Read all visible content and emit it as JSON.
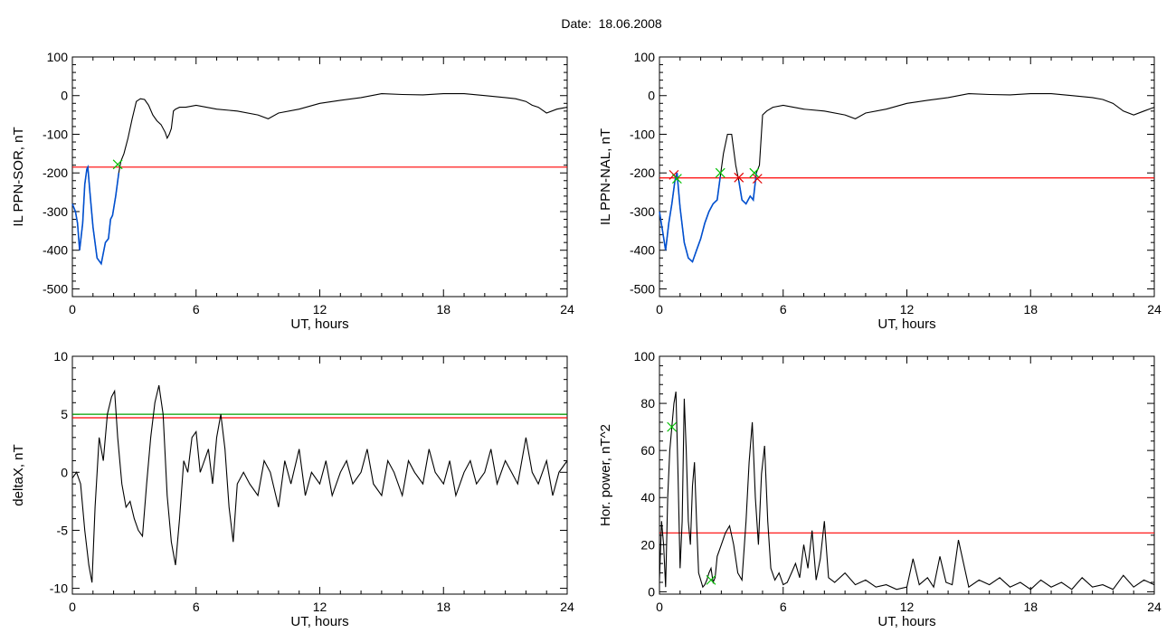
{
  "header": {
    "date_label": "Date:",
    "date_value": "18.06.2008"
  },
  "colors": {
    "data": "#000000",
    "substorm": "#0050d0",
    "threshold": "#ff0000",
    "threshold2": "#00a000",
    "marker_green": "#00c000",
    "marker_red": "#e00000"
  },
  "chart_data": [
    {
      "type": "line",
      "title": "",
      "xlabel": "UT, hours",
      "ylabel": "IL PPN-SOR, nT",
      "xlim": [
        0,
        24
      ],
      "ylim": [
        -520,
        100
      ],
      "xticks": [
        0,
        6,
        12,
        18,
        24
      ],
      "yticks": [
        100,
        0,
        -100,
        -200,
        -300,
        -400,
        -500
      ],
      "grid": false,
      "series": [
        {
          "role": "main",
          "x": [
            0,
            0.15,
            0.25,
            0.35,
            0.5,
            0.6,
            0.7,
            0.75,
            0.85,
            1.0,
            1.2,
            1.4,
            1.6,
            1.75,
            1.85,
            1.95,
            2.1,
            2.25,
            2.35,
            2.5,
            2.7,
            2.9,
            3.1,
            3.3,
            3.5,
            3.7,
            3.9,
            4.1,
            4.3,
            4.5,
            4.6,
            4.7,
            4.8,
            4.9,
            5.0,
            5.2,
            5.5,
            6,
            7,
            8,
            9,
            9.5,
            10,
            11,
            12,
            13,
            14,
            15,
            16,
            17,
            18,
            19,
            20,
            21,
            21.5,
            22,
            22.3,
            22.6,
            23,
            23.5,
            24
          ],
          "y": [
            -280,
            -300,
            -330,
            -400,
            -330,
            -230,
            -190,
            -185,
            -250,
            -340,
            -420,
            -435,
            -380,
            -370,
            -320,
            -310,
            -260,
            -200,
            -170,
            -150,
            -110,
            -60,
            -15,
            -8,
            -10,
            -25,
            -50,
            -65,
            -75,
            -95,
            -110,
            -100,
            -85,
            -40,
            -35,
            -30,
            -30,
            -25,
            -35,
            -40,
            -50,
            -60,
            -45,
            -35,
            -20,
            -12,
            -5,
            5,
            3,
            2,
            5,
            5,
            0,
            -5,
            -8,
            -15,
            -25,
            -30,
            -45,
            -35,
            -30
          ]
        },
        {
          "role": "highlight",
          "x": [
            0,
            0.15,
            0.25,
            0.35,
            0.5,
            0.6,
            0.7,
            0.75,
            0.85,
            1.0,
            1.2,
            1.4,
            1.6,
            1.75,
            1.85,
            1.95,
            2.1,
            2.25
          ],
          "y": [
            -280,
            -300,
            -330,
            -400,
            -330,
            -230,
            -190,
            -185,
            -250,
            -340,
            -420,
            -435,
            -380,
            -370,
            -320,
            -310,
            -260,
            -200
          ]
        }
      ],
      "thresholds": [
        {
          "y": -185,
          "role": "threshold"
        }
      ],
      "markers": [
        {
          "x": 2.2,
          "y": -178,
          "role": "marker_green"
        }
      ]
    },
    {
      "type": "line",
      "title": "",
      "xlabel": "UT, hours",
      "ylabel": "IL PPN-NAL, nT",
      "xlim": [
        0,
        24
      ],
      "ylim": [
        -520,
        100
      ],
      "xticks": [
        0,
        6,
        12,
        18,
        24
      ],
      "yticks": [
        100,
        0,
        -100,
        -200,
        -300,
        -400,
        -500
      ],
      "grid": false,
      "series": [
        {
          "role": "main",
          "x": [
            0,
            0.15,
            0.3,
            0.45,
            0.6,
            0.75,
            0.85,
            1.0,
            1.2,
            1.4,
            1.6,
            1.8,
            2.0,
            2.2,
            2.4,
            2.6,
            2.8,
            2.95,
            3.1,
            3.3,
            3.5,
            3.7,
            3.85,
            4.0,
            4.2,
            4.4,
            4.55,
            4.7,
            4.85,
            5.0,
            5.2,
            5.5,
            6,
            7,
            8,
            9,
            9.5,
            10,
            11,
            12,
            13,
            14,
            15,
            16,
            17,
            18,
            19,
            20,
            21,
            21.5,
            22,
            22.5,
            23,
            23.5,
            24
          ],
          "y": [
            -300,
            -350,
            -400,
            -330,
            -280,
            -220,
            -200,
            -290,
            -380,
            -420,
            -430,
            -400,
            -370,
            -330,
            -300,
            -280,
            -270,
            -210,
            -150,
            -100,
            -100,
            -180,
            -220,
            -270,
            -280,
            -260,
            -270,
            -200,
            -180,
            -50,
            -40,
            -30,
            -25,
            -35,
            -40,
            -50,
            -60,
            -45,
            -35,
            -20,
            -12,
            -5,
            5,
            3,
            2,
            5,
            5,
            0,
            -5,
            -10,
            -20,
            -40,
            -50,
            -40,
            -30
          ]
        },
        {
          "role": "highlight",
          "x": [
            0,
            0.15,
            0.3,
            0.45,
            0.6,
            0.75,
            0.85,
            1.0,
            1.2,
            1.4,
            1.6,
            1.8,
            2.0,
            2.2,
            2.4,
            2.6,
            2.8,
            2.95
          ],
          "y": [
            -300,
            -350,
            -400,
            -330,
            -280,
            -220,
            -200,
            -290,
            -380,
            -420,
            -430,
            -400,
            -370,
            -330,
            -300,
            -280,
            -270,
            -210
          ]
        },
        {
          "role": "highlight",
          "x": [
            3.85,
            4.0,
            4.2,
            4.4,
            4.55,
            4.7
          ],
          "y": [
            -220,
            -270,
            -280,
            -260,
            -270,
            -200
          ]
        }
      ],
      "thresholds": [
        {
          "y": -213,
          "role": "threshold"
        }
      ],
      "markers": [
        {
          "x": 0.7,
          "y": -205,
          "role": "marker_red"
        },
        {
          "x": 0.85,
          "y": -215,
          "role": "marker_green"
        },
        {
          "x": 2.95,
          "y": -200,
          "role": "marker_green"
        },
        {
          "x": 3.85,
          "y": -212,
          "role": "marker_red"
        },
        {
          "x": 4.6,
          "y": -200,
          "role": "marker_green"
        },
        {
          "x": 4.75,
          "y": -215,
          "role": "marker_red"
        }
      ]
    },
    {
      "type": "line",
      "title": "",
      "xlabel": "UT, hours",
      "ylabel": "deltaX, nT",
      "xlim": [
        0,
        24
      ],
      "ylim": [
        -10.5,
        10
      ],
      "xticks": [
        0,
        6,
        12,
        18,
        24
      ],
      "yticks": [
        10,
        5,
        0,
        -5,
        -10
      ],
      "grid": false,
      "series": [
        {
          "role": "main",
          "x": [
            0,
            0.2,
            0.4,
            0.6,
            0.8,
            0.95,
            1.1,
            1.3,
            1.5,
            1.7,
            1.9,
            2.05,
            2.2,
            2.4,
            2.6,
            2.8,
            3.0,
            3.2,
            3.4,
            3.6,
            3.8,
            4.0,
            4.2,
            4.4,
            4.6,
            4.8,
            5.0,
            5.2,
            5.4,
            5.6,
            5.8,
            6.0,
            6.2,
            6.4,
            6.6,
            6.8,
            7.0,
            7.2,
            7.4,
            7.6,
            7.8,
            8.0,
            8.3,
            8.6,
            9,
            9.3,
            9.6,
            10,
            10.3,
            10.6,
            11,
            11.3,
            11.6,
            12,
            12.3,
            12.6,
            13,
            13.3,
            13.6,
            14,
            14.3,
            14.6,
            15,
            15.3,
            15.6,
            16,
            16.3,
            16.6,
            17,
            17.3,
            17.6,
            18,
            18.3,
            18.6,
            19,
            19.3,
            19.6,
            20,
            20.3,
            20.6,
            21,
            21.3,
            21.6,
            22,
            22.3,
            22.6,
            23,
            23.3,
            23.6,
            24
          ],
          "y": [
            -0.5,
            0,
            -1,
            -5,
            -8,
            -9.5,
            -3,
            3,
            1,
            5,
            6.5,
            7,
            3,
            -1,
            -3,
            -2.5,
            -4,
            -5,
            -5.5,
            -1,
            3,
            6,
            7.5,
            5,
            -2,
            -6,
            -8,
            -4,
            1,
            0,
            3,
            3.5,
            0,
            1,
            2,
            -1,
            3,
            5,
            2,
            -3,
            -6,
            -1,
            0,
            -1,
            -2,
            1,
            0,
            -3,
            1,
            -1,
            2,
            -2,
            0,
            -1,
            1,
            -2,
            0,
            1,
            -1,
            0,
            2,
            -1,
            -2,
            1,
            0,
            -2,
            1,
            0,
            -1,
            2,
            0,
            -1,
            1,
            -2,
            0,
            1,
            -1,
            0,
            2,
            -1,
            1,
            0,
            -1,
            3,
            0,
            -1,
            1,
            -2,
            0,
            1
          ]
        }
      ],
      "thresholds": [
        {
          "y": 5,
          "role": "threshold2"
        },
        {
          "y": 4.7,
          "role": "threshold"
        }
      ],
      "markers": []
    },
    {
      "type": "line",
      "title": "",
      "xlabel": "UT, hours",
      "ylabel": "Hor. power, nT^2",
      "xlim": [
        0,
        24
      ],
      "ylim": [
        -1,
        100
      ],
      "xticks": [
        0,
        6,
        12,
        18,
        24
      ],
      "yticks": [
        100,
        80,
        60,
        40,
        20,
        0
      ],
      "grid": false,
      "series": [
        {
          "role": "main",
          "x": [
            0,
            0.1,
            0.2,
            0.3,
            0.4,
            0.5,
            0.6,
            0.7,
            0.8,
            0.9,
            1.0,
            1.1,
            1.2,
            1.3,
            1.4,
            1.5,
            1.6,
            1.7,
            1.8,
            1.9,
            2.0,
            2.1,
            2.2,
            2.3,
            2.4,
            2.5,
            2.6,
            2.7,
            2.8,
            3.0,
            3.2,
            3.4,
            3.6,
            3.8,
            4.0,
            4.2,
            4.35,
            4.5,
            4.65,
            4.8,
            4.95,
            5.1,
            5.25,
            5.4,
            5.6,
            5.8,
            6.0,
            6.2,
            6.4,
            6.6,
            6.8,
            7.0,
            7.2,
            7.4,
            7.6,
            7.8,
            8.0,
            8.2,
            8.5,
            9,
            9.5,
            10,
            10.5,
            11,
            11.5,
            12,
            12.3,
            12.6,
            13,
            13.3,
            13.6,
            13.9,
            14.2,
            14.5,
            15,
            15.5,
            16,
            16.5,
            17,
            17.5,
            18,
            18.5,
            19,
            19.5,
            20,
            20.5,
            21,
            21.5,
            22,
            22.5,
            23,
            23.5,
            24
          ],
          "y": [
            5,
            30,
            20,
            2,
            40,
            60,
            70,
            80,
            85,
            50,
            10,
            30,
            82,
            60,
            30,
            20,
            45,
            55,
            30,
            8,
            5,
            2,
            3,
            5,
            8,
            10,
            4,
            6,
            15,
            20,
            25,
            28,
            20,
            8,
            5,
            30,
            55,
            72,
            40,
            20,
            50,
            62,
            30,
            10,
            5,
            8,
            3,
            4,
            8,
            12,
            6,
            20,
            10,
            26,
            5,
            14,
            30,
            6,
            4,
            8,
            3,
            5,
            2,
            3,
            1,
            2,
            14,
            3,
            6,
            2,
            15,
            4,
            3,
            22,
            2,
            5,
            3,
            6,
            2,
            4,
            1,
            5,
            2,
            4,
            1,
            6,
            2,
            3,
            1,
            7,
            2,
            5,
            3
          ]
        }
      ],
      "thresholds": [
        {
          "y": 25,
          "role": "threshold"
        }
      ],
      "markers": [
        {
          "x": 0.6,
          "y": 70,
          "role": "marker_green"
        },
        {
          "x": 2.5,
          "y": 5,
          "role": "marker_green"
        }
      ]
    }
  ]
}
